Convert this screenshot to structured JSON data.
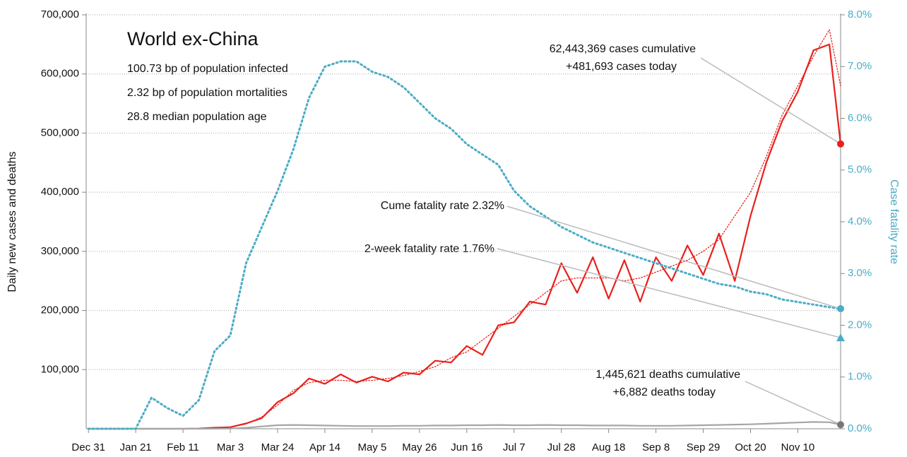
{
  "chart_data": {
    "type": "line",
    "title": "World ex-China",
    "subtitle": [
      "100.73 bp of population infected",
      "2.32 bp of population mortalities",
      "28.8 median population age"
    ],
    "y_label": "Daily new cases and deaths",
    "y2_label": "Case fatality rate",
    "x": [
      0,
      7,
      14,
      21,
      28,
      35,
      42,
      49,
      56,
      63,
      70,
      77,
      84,
      91,
      98,
      105,
      112,
      119,
      126,
      133,
      140,
      147,
      154,
      161,
      168,
      175,
      182,
      189,
      196,
      203,
      210,
      217,
      224,
      231,
      238,
      245,
      252,
      259,
      266,
      273,
      280,
      287,
      294,
      301,
      308,
      315,
      322,
      329,
      334
    ],
    "xlim": [
      -1,
      334
    ],
    "xticks": [
      {
        "value": 0,
        "label": "Dec 31"
      },
      {
        "value": 21,
        "label": "Jan 21"
      },
      {
        "value": 42,
        "label": "Feb 11"
      },
      {
        "value": 63,
        "label": "Mar 3"
      },
      {
        "value": 84,
        "label": "Mar 24"
      },
      {
        "value": 105,
        "label": "Apr 14"
      },
      {
        "value": 126,
        "label": "May 5"
      },
      {
        "value": 147,
        "label": "May 26"
      },
      {
        "value": 168,
        "label": "Jun 16"
      },
      {
        "value": 189,
        "label": "Jul 7"
      },
      {
        "value": 210,
        "label": "Jul 28"
      },
      {
        "value": 231,
        "label": "Aug 18"
      },
      {
        "value": 252,
        "label": "Sep 8"
      },
      {
        "value": 273,
        "label": "Sep 29"
      },
      {
        "value": 294,
        "label": "Oct 20"
      },
      {
        "value": 315,
        "label": "Nov 10"
      }
    ],
    "ylim": [
      0,
      700000
    ],
    "yticks": [
      {
        "value": 100000,
        "label": "100,000"
      },
      {
        "value": 200000,
        "label": "200,000"
      },
      {
        "value": 300000,
        "label": "300,000"
      },
      {
        "value": 400000,
        "label": "400,000"
      },
      {
        "value": 500000,
        "label": "500,000"
      },
      {
        "value": 600000,
        "label": "600,000"
      },
      {
        "value": 700000,
        "label": "700,000"
      }
    ],
    "y2lim": [
      0,
      8
    ],
    "y2ticks": [
      {
        "value": 0,
        "label": "0.0%"
      },
      {
        "value": 1,
        "label": "1.0%"
      },
      {
        "value": 2,
        "label": "2.0%"
      },
      {
        "value": 3,
        "label": "3.0%"
      },
      {
        "value": 4,
        "label": "4.0%"
      },
      {
        "value": 5,
        "label": "5.0%"
      },
      {
        "value": 6,
        "label": "6.0%"
      },
      {
        "value": 7,
        "label": "7.0%"
      },
      {
        "value": 8,
        "label": "8.0%"
      }
    ],
    "grid": true,
    "series": [
      {
        "name": "Daily cases",
        "color": "#e8201c",
        "style": "solid",
        "values": [
          0,
          0,
          0,
          0,
          0,
          0,
          0,
          400,
          1800,
          2600,
          9000,
          18000,
          45000,
          60000,
          85000,
          76000,
          92000,
          78000,
          88000,
          80000,
          95000,
          92000,
          115000,
          112000,
          140000,
          125000,
          175000,
          180000,
          215000,
          210000,
          280000,
          230000,
          290000,
          220000,
          285000,
          215000,
          290000,
          250000,
          310000,
          260000,
          330000,
          250000,
          360000,
          450000,
          520000,
          570000,
          640000,
          650000,
          481693
        ]
      },
      {
        "name": "Cases average",
        "color": "#e8201c",
        "style": "dotted",
        "values": [
          0,
          0,
          0,
          0,
          0,
          0,
          0,
          500,
          1500,
          3000,
          8000,
          20000,
          40000,
          65000,
          78000,
          82000,
          82000,
          80000,
          82000,
          85000,
          90000,
          97000,
          105000,
          120000,
          130000,
          150000,
          170000,
          190000,
          210000,
          230000,
          250000,
          255000,
          255000,
          255000,
          250000,
          255000,
          265000,
          275000,
          285000,
          300000,
          320000,
          360000,
          400000,
          460000,
          530000,
          580000,
          630000,
          675000,
          580000
        ]
      },
      {
        "name": "Daily deaths",
        "color": "#a6a6a6",
        "style": "solid",
        "values": [
          0,
          0,
          0,
          0,
          0,
          0,
          0,
          0,
          100,
          400,
          1500,
          4000,
          6000,
          6500,
          6000,
          5500,
          5000,
          4500,
          4500,
          4500,
          5000,
          5000,
          5500,
          5500,
          6000,
          6000,
          6500,
          6000,
          6000,
          6500,
          6000,
          6000,
          5500,
          5500,
          5500,
          5000,
          5000,
          5000,
          5500,
          6000,
          6500,
          7000,
          7500,
          8500,
          9500,
          10500,
          11500,
          11000,
          6882
        ]
      },
      {
        "name": "Cume fatality rate",
        "color": "#4bacc6",
        "style": "dotted",
        "axis": "y2",
        "values": [
          0,
          0,
          0,
          0,
          0.6,
          0.4,
          0.25,
          0.55,
          1.5,
          1.8,
          3.2,
          3.9,
          4.6,
          5.4,
          6.4,
          7.0,
          7.1,
          7.1,
          6.9,
          6.8,
          6.6,
          6.3,
          6.0,
          5.8,
          5.5,
          5.3,
          5.1,
          4.6,
          4.3,
          4.1,
          3.9,
          3.75,
          3.6,
          3.5,
          3.4,
          3.3,
          3.2,
          3.1,
          3.0,
          2.9,
          2.8,
          2.75,
          2.65,
          2.6,
          2.5,
          2.45,
          2.4,
          2.35,
          2.32
        ]
      }
    ],
    "annotations": {
      "cases": [
        "62,443,369 cases cumulative",
        "+481,693 cases today"
      ],
      "deaths": [
        "1,445,621 deaths cumulative",
        "+6,882 deaths today"
      ],
      "cume_rate": "Cume fatality rate 2.32%",
      "two_week_rate": {
        "label": "2-week fatality rate 1.76%",
        "value": 1.76
      }
    }
  }
}
